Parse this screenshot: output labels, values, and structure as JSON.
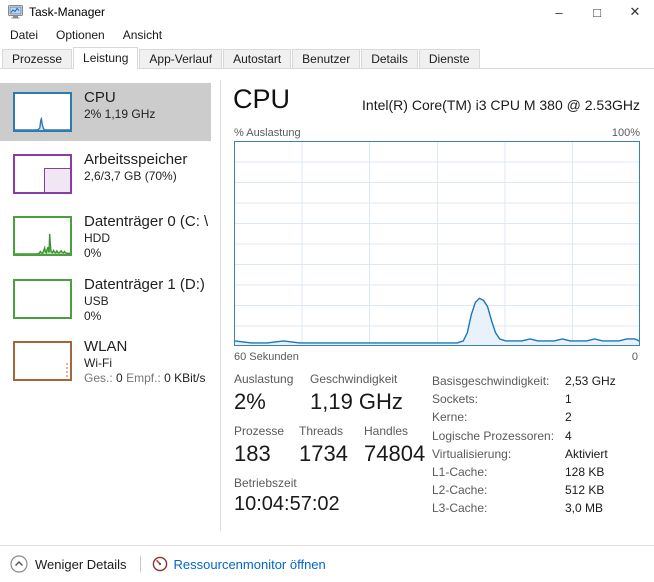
{
  "window": {
    "title": "Task-Manager",
    "controls": {
      "minimize": "–",
      "maximize": "□",
      "close": "✕"
    }
  },
  "menu": {
    "items": [
      "Datei",
      "Optionen",
      "Ansicht"
    ]
  },
  "tabs": {
    "items": [
      "Prozesse",
      "Leistung",
      "App-Verlauf",
      "Autostart",
      "Benutzer",
      "Details",
      "Dienste"
    ],
    "active": "Leistung"
  },
  "sidebar": {
    "items": [
      {
        "title": "CPU",
        "line1": "2% 1,19 GHz",
        "color": "#2e7bb4",
        "selected": true,
        "thumb_points": [
          [
            0,
            0
          ],
          [
            38,
            0
          ],
          [
            42,
            1
          ],
          [
            45,
            5
          ],
          [
            47,
            28
          ],
          [
            48,
            31
          ],
          [
            50,
            12
          ],
          [
            52,
            3
          ],
          [
            55,
            0
          ],
          [
            100,
            0
          ]
        ]
      },
      {
        "title": "Arbeitsspeicher",
        "line1": "2,6/3,7 GB (70%)",
        "color": "#8b3ba5"
      },
      {
        "title": "Datenträger 0 (C: \\",
        "line1": "HDD",
        "line2": "0%",
        "color": "#4aa03c",
        "thumb_points": [
          [
            0,
            0
          ],
          [
            40,
            0
          ],
          [
            44,
            2
          ],
          [
            46,
            7
          ],
          [
            48,
            3
          ],
          [
            50,
            2
          ],
          [
            52,
            9
          ],
          [
            54,
            17
          ],
          [
            55,
            7
          ],
          [
            57,
            4
          ],
          [
            58,
            11
          ],
          [
            60,
            19
          ],
          [
            61,
            8
          ],
          [
            62,
            5
          ],
          [
            63,
            56
          ],
          [
            64,
            32
          ],
          [
            65,
            12
          ],
          [
            66,
            6
          ],
          [
            68,
            4
          ],
          [
            70,
            10
          ],
          [
            72,
            5
          ],
          [
            74,
            3
          ],
          [
            76,
            9
          ],
          [
            78,
            4
          ],
          [
            80,
            3
          ],
          [
            82,
            6
          ],
          [
            84,
            9
          ],
          [
            86,
            4
          ],
          [
            88,
            3
          ],
          [
            90,
            7
          ],
          [
            92,
            3
          ],
          [
            95,
            2
          ],
          [
            100,
            2
          ]
        ]
      },
      {
        "title": "Datenträger 1 (D:)",
        "line1": "USB",
        "line2": "0%",
        "color": "#4aa03c"
      },
      {
        "title": "WLAN",
        "line1": "Wi-Fi",
        "color": "#a5673a",
        "traffic": {
          "sent_label": "Ges.:",
          "sent_value": "0",
          "recv_label": "Empf.:",
          "recv_value": "0 KBit/s"
        }
      }
    ]
  },
  "main": {
    "title": "CPU",
    "subtitle": "Intel(R) Core(TM) i3 CPU M 380 @ 2.53GHz",
    "chart": {
      "type": "area",
      "ylabel": "% Auslastung",
      "y_max_label": "100%",
      "x_left_label": "60 Sekunden",
      "x_right_label": "0",
      "ylim": [
        0,
        100
      ],
      "xlim_seconds": [
        60,
        0
      ],
      "line_color": "#1779ba",
      "fill_color": "#e9f2fa",
      "grid_color": "#dde9f3",
      "points": [
        [
          0,
          2
        ],
        [
          4,
          1
        ],
        [
          8,
          1
        ],
        [
          12,
          2
        ],
        [
          16,
          1
        ],
        [
          20,
          1
        ],
        [
          24,
          1
        ],
        [
          28,
          1
        ],
        [
          32,
          1
        ],
        [
          36,
          1
        ],
        [
          40,
          1
        ],
        [
          44,
          1
        ],
        [
          48,
          1
        ],
        [
          52,
          1
        ],
        [
          55,
          1
        ],
        [
          56.5,
          2
        ],
        [
          57.5,
          6
        ],
        [
          58.5,
          15
        ],
        [
          59.5,
          21
        ],
        [
          60.5,
          23
        ],
        [
          61.5,
          22
        ],
        [
          62.5,
          19
        ],
        [
          63.5,
          12
        ],
        [
          64.5,
          6
        ],
        [
          65.5,
          3
        ],
        [
          67,
          2
        ],
        [
          69,
          2
        ],
        [
          71,
          2
        ],
        [
          73,
          3
        ],
        [
          75,
          2
        ],
        [
          77,
          2
        ],
        [
          79,
          2
        ],
        [
          81,
          3
        ],
        [
          83,
          2
        ],
        [
          85,
          2
        ],
        [
          87,
          2
        ],
        [
          89,
          3
        ],
        [
          91,
          2
        ],
        [
          93,
          2
        ],
        [
          95,
          2
        ],
        [
          97,
          3
        ],
        [
          99,
          3
        ],
        [
          100,
          2
        ]
      ]
    },
    "stats": {
      "usage_label": "Auslastung",
      "usage_value": "2%",
      "speed_label": "Geschwindigkeit",
      "speed_value": "1,19 GHz",
      "processes_label": "Prozesse",
      "processes_value": "183",
      "threads_label": "Threads",
      "threads_value": "1734",
      "handles_label": "Handles",
      "handles_value": "74804",
      "uptime_label": "Betriebszeit",
      "uptime_value": "10:04:57:02"
    },
    "details": [
      {
        "label": "Basisgeschwindigkeit:",
        "value": "2,53 GHz"
      },
      {
        "label": "Sockets:",
        "value": "1"
      },
      {
        "label": "Kerne:",
        "value": "2"
      },
      {
        "label": "Logische Prozessoren:",
        "value": "4"
      },
      {
        "label": "Virtualisierung:",
        "value": "Aktiviert"
      },
      {
        "label": "L1-Cache:",
        "value": "128 KB"
      },
      {
        "label": "L2-Cache:",
        "value": "512 KB"
      },
      {
        "label": "L3-Cache:",
        "value": "3,0 MB"
      }
    ]
  },
  "footer": {
    "collapse_label": "Weniger Details",
    "resmon_label": "Ressourcenmonitor öffnen",
    "link_color": "#0066cc"
  },
  "icons": {
    "app": "task-manager-monitor",
    "collapse": "chevron-up-circle",
    "resmon": "gauge-speedometer"
  }
}
